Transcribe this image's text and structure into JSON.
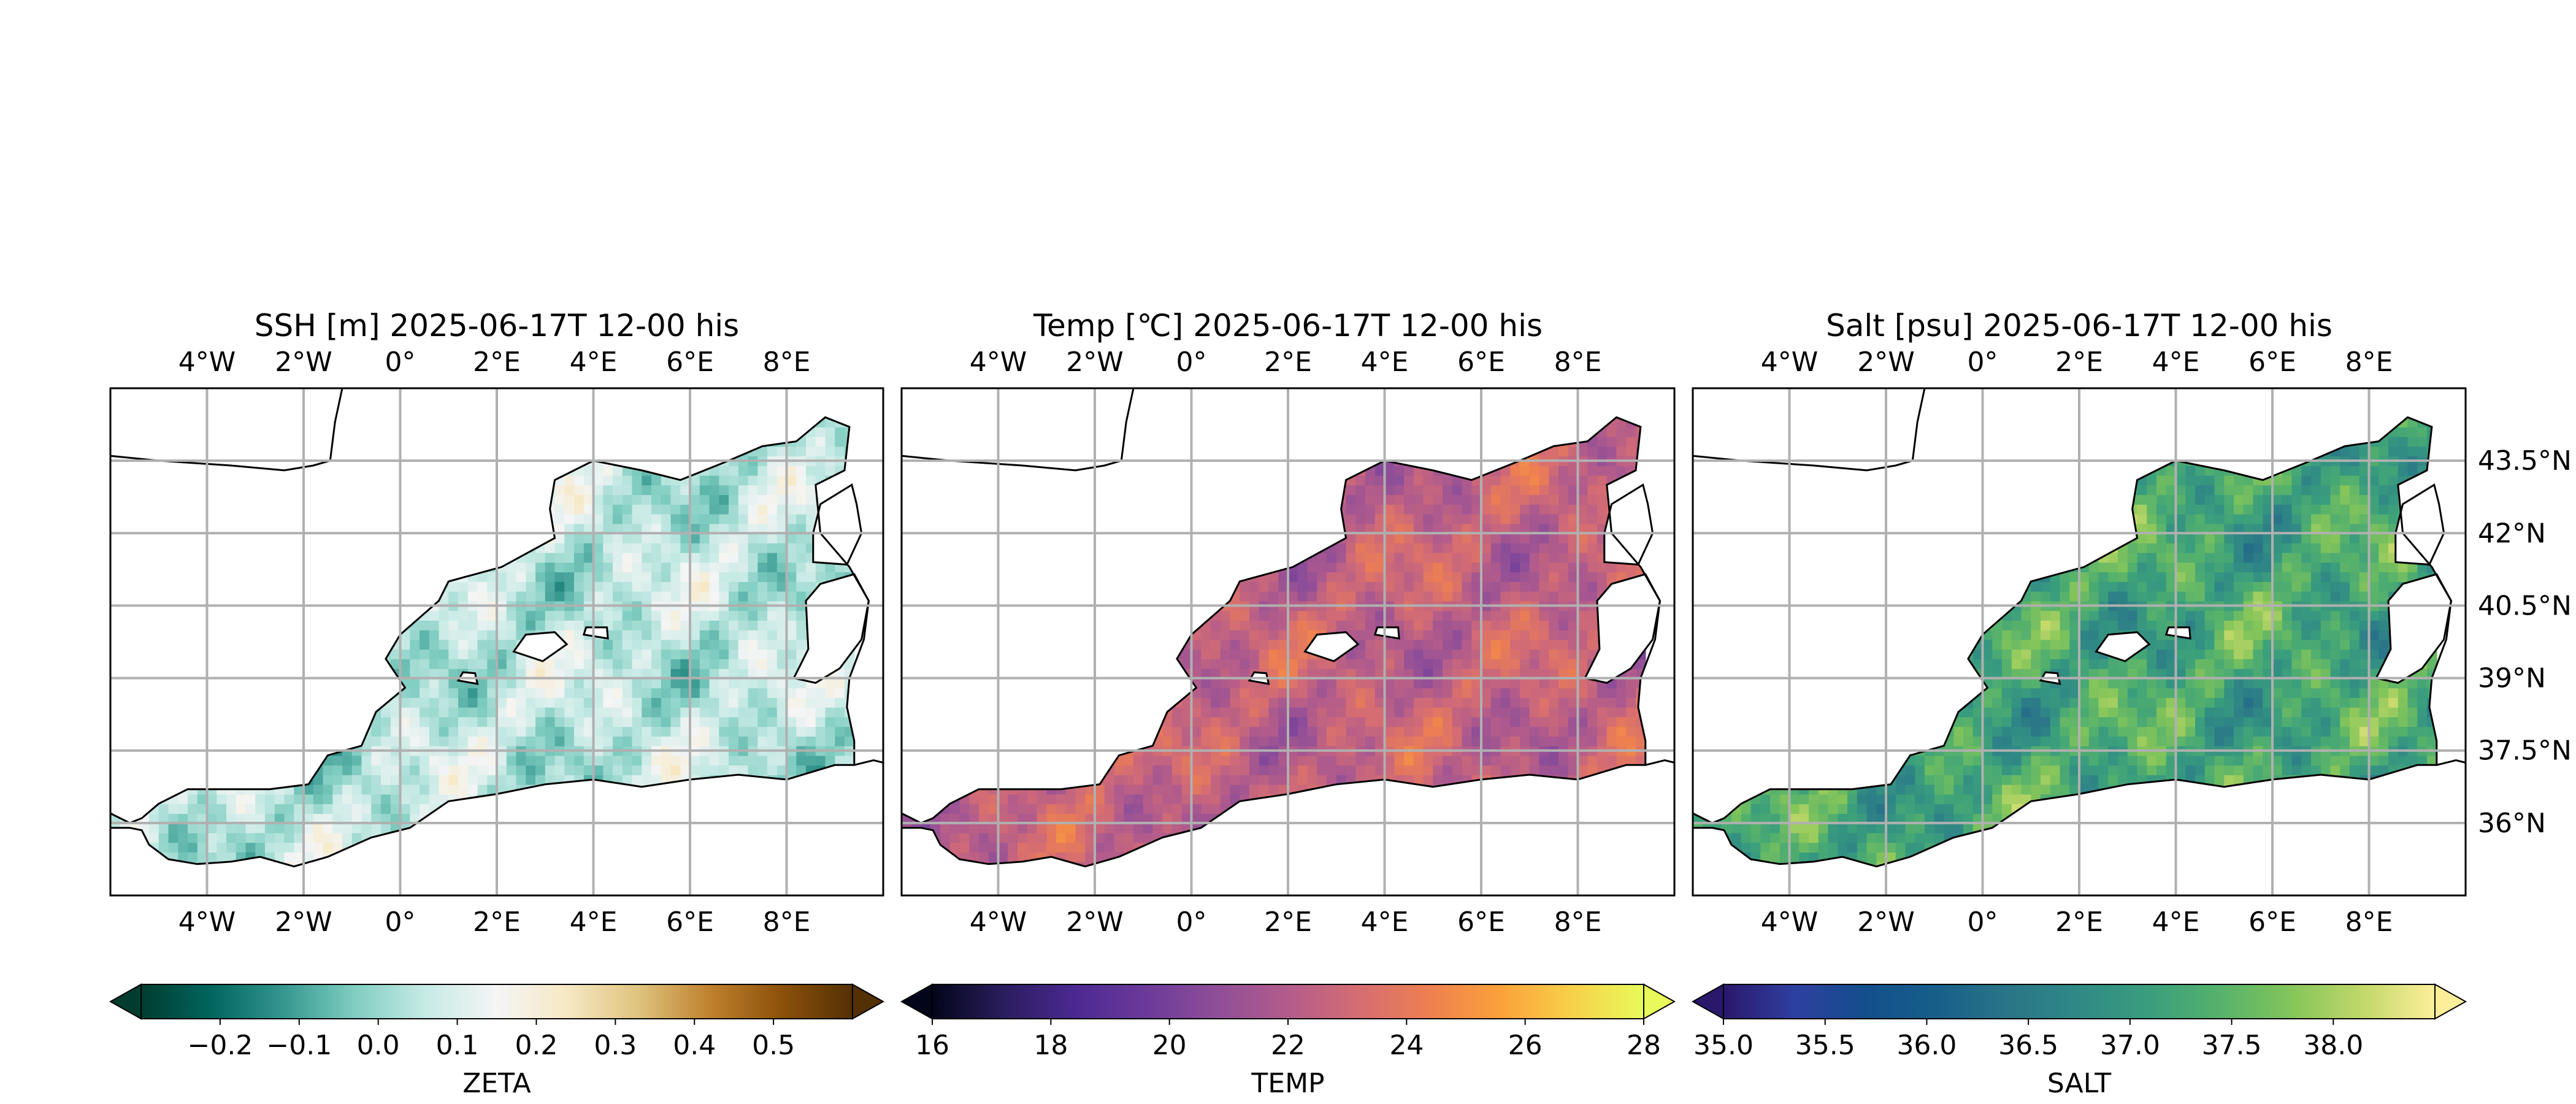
{
  "chart_data": [
    {
      "type": "heatmap",
      "title": "SSH [m] 2025-06-17T 12-00 his",
      "variable": "ZETA",
      "colorbar_label": "ZETA",
      "colormap": [
        "#003c30",
        "#01665e",
        "#35978f",
        "#80cdc1",
        "#c7eae5",
        "#f5f5f5",
        "#f6e8c3",
        "#dfc27d",
        "#bf812d",
        "#8c510a",
        "#543005"
      ],
      "colorbar_range": [
        -0.3,
        0.6
      ],
      "colorbar_ticks": [
        "−0.2",
        "−0.1",
        "0.0",
        "0.1",
        "0.2",
        "0.3",
        "0.4",
        "0.5"
      ],
      "colorbar_tick_values": [
        -0.2,
        -0.1,
        0.0,
        0.1,
        0.2,
        0.3,
        0.4,
        0.5
      ],
      "colorbar_extend": "both",
      "field_range": [
        -0.15,
        0.25
      ],
      "xlim": [
        -6,
        10
      ],
      "ylim": [
        34.5,
        45
      ],
      "x_ticks": [
        "4°W",
        "2°W",
        "0°",
        "2°E",
        "4°E",
        "6°E",
        "8°E"
      ],
      "x_tick_values": [
        -4,
        -2,
        0,
        2,
        4,
        6,
        8
      ],
      "y_ticks": [
        "36°N",
        "37.5°N",
        "39°N",
        "40.5°N",
        "42°N",
        "43.5°N"
      ],
      "y_tick_values": [
        36,
        37.5,
        39,
        40.5,
        42,
        43.5
      ],
      "y_tick_side": "none",
      "grid": true
    },
    {
      "type": "heatmap",
      "title": "Temp [℃] 2025-06-17T 12-00 his",
      "variable": "TEMP",
      "colorbar_label": "TEMP",
      "colormap": [
        "#03051a",
        "#2a1d5e",
        "#4b2991",
        "#6b3a9a",
        "#8f4e98",
        "#b35c8b",
        "#d56d72",
        "#ee8050",
        "#fba23a",
        "#f8d14a",
        "#e7fa5a"
      ],
      "colorbar_range": [
        16,
        28
      ],
      "colorbar_ticks": [
        "16",
        "18",
        "20",
        "22",
        "24",
        "26",
        "28"
      ],
      "colorbar_tick_values": [
        16,
        18,
        20,
        22,
        24,
        26,
        28
      ],
      "colorbar_extend": "both",
      "field_range": [
        20,
        25
      ],
      "xlim": [
        -6,
        10
      ],
      "ylim": [
        34.5,
        45
      ],
      "x_ticks": [
        "4°W",
        "2°W",
        "0°",
        "2°E",
        "4°E",
        "6°E",
        "8°E"
      ],
      "x_tick_values": [
        -4,
        -2,
        0,
        2,
        4,
        6,
        8
      ],
      "y_ticks": [
        "36°N",
        "37.5°N",
        "39°N",
        "40.5°N",
        "42°N",
        "43.5°N"
      ],
      "y_tick_values": [
        36,
        37.5,
        39,
        40.5,
        42,
        43.5
      ],
      "y_tick_side": "none",
      "grid": true
    },
    {
      "type": "heatmap",
      "title": "Salt [psu] 2025-06-17T 12-00 his",
      "variable": "SALT",
      "colorbar_label": "SALT",
      "colormap": [
        "#2a186c",
        "#2e3fa0",
        "#134f8c",
        "#175f89",
        "#2a7588",
        "#308985",
        "#3a9e7d",
        "#57b26b",
        "#85c55a",
        "#c3d86a",
        "#fdef9a"
      ],
      "colorbar_range": [
        35.0,
        38.5
      ],
      "colorbar_ticks": [
        "35.0",
        "35.5",
        "36.0",
        "36.5",
        "37.0",
        "37.5",
        "38.0"
      ],
      "colorbar_tick_values": [
        35.0,
        35.5,
        36.0,
        36.5,
        37.0,
        37.5,
        38.0
      ],
      "colorbar_extend": "both",
      "field_range": [
        36.2,
        38.3
      ],
      "xlim": [
        -6,
        10
      ],
      "ylim": [
        34.5,
        45
      ],
      "x_ticks": [
        "4°W",
        "2°W",
        "0°",
        "2°E",
        "4°E",
        "6°E",
        "8°E"
      ],
      "x_tick_values": [
        -4,
        -2,
        0,
        2,
        4,
        6,
        8
      ],
      "y_ticks": [
        "36°N",
        "37.5°N",
        "39°N",
        "40.5°N",
        "42°N",
        "43.5°N"
      ],
      "y_tick_values": [
        36,
        37.5,
        39,
        40.5,
        42,
        43.5
      ],
      "y_tick_side": "right",
      "grid": true
    }
  ]
}
